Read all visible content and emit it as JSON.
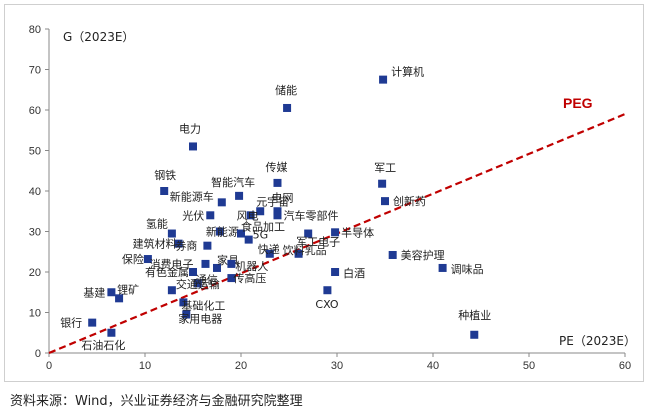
{
  "chart_data": {
    "type": "scatter",
    "xlabel": "PE（2023E）",
    "ylabel": "G（2023E）",
    "xlim": [
      0,
      60
    ],
    "ylim": [
      0,
      80
    ],
    "xticks": [
      0,
      10,
      20,
      30,
      40,
      50,
      60
    ],
    "yticks": [
      0,
      10,
      20,
      30,
      40,
      50,
      60,
      70,
      80
    ],
    "grid": false,
    "marker_color": "#1f3a93",
    "trend_line": {
      "name": "PEG",
      "from": [
        0,
        0
      ],
      "to": [
        60,
        59
      ],
      "color": "#c00000",
      "style": "dashed"
    },
    "points": [
      {
        "label": "计算机",
        "x": 34.8,
        "y": 67.5
      },
      {
        "label": "储能",
        "x": 24.8,
        "y": 60.5
      },
      {
        "label": "电力",
        "x": 15.0,
        "y": 51.0
      },
      {
        "label": "传媒",
        "x": 23.8,
        "y": 42.0
      },
      {
        "label": "军工",
        "x": 34.7,
        "y": 41.8
      },
      {
        "label": "钢铁",
        "x": 12.0,
        "y": 40.0
      },
      {
        "label": "智能汽车",
        "x": 19.8,
        "y": 38.8
      },
      {
        "label": "创新药",
        "x": 35.0,
        "y": 37.5
      },
      {
        "label": "新能源车",
        "x": 18.0,
        "y": 37.2
      },
      {
        "label": "元宇宙",
        "x": 22.0,
        "y": 35.0
      },
      {
        "label": "电网",
        "x": 23.8,
        "y": 35.0
      },
      {
        "label": "光伏",
        "x": 16.8,
        "y": 34.0
      },
      {
        "label": "风电",
        "x": 21.0,
        "y": 34.0
      },
      {
        "label": "汽车零部件",
        "x": 23.8,
        "y": 34.0
      },
      {
        "label": "氢能",
        "x": 12.8,
        "y": 29.5
      },
      {
        "label": "新能源",
        "x": 17.8,
        "y": 30.0
      },
      {
        "label": "食品加工",
        "x": 20.0,
        "y": 29.5
      },
      {
        "label": "半导体",
        "x": 29.8,
        "y": 29.8
      },
      {
        "label": "军工电子",
        "x": 27.0,
        "y": 29.5
      },
      {
        "label": "建筑材料",
        "x": 13.5,
        "y": 27.0
      },
      {
        "label": "券商",
        "x": 16.5,
        "y": 26.5
      },
      {
        "label": "5G",
        "x": 20.8,
        "y": 28.0
      },
      {
        "label": "快递",
        "x": 23.0,
        "y": 24.5
      },
      {
        "label": "保险",
        "x": 10.3,
        "y": 23.2
      },
      {
        "label": "饮料乳品",
        "x": 26.0,
        "y": 24.5
      },
      {
        "label": "美容护理",
        "x": 35.8,
        "y": 24.2
      },
      {
        "label": "消费电子",
        "x": 16.3,
        "y": 22.0
      },
      {
        "label": "家具",
        "x": 17.5,
        "y": 21.0
      },
      {
        "label": "机器人",
        "x": 19.0,
        "y": 22.0
      },
      {
        "label": "调味品",
        "x": 41.0,
        "y": 21.0
      },
      {
        "label": "有色金属",
        "x": 15.0,
        "y": 20.0
      },
      {
        "label": "白酒",
        "x": 29.8,
        "y": 20.0
      },
      {
        "label": "传高压",
        "x": 19.0,
        "y": 18.5
      },
      {
        "label": "通信",
        "x": 15.5,
        "y": 17.2
      },
      {
        "label": "CXO",
        "x": 29.0,
        "y": 15.5
      },
      {
        "label": "交通运输",
        "x": 12.8,
        "y": 15.5
      },
      {
        "label": "基建",
        "x": 6.5,
        "y": 15.0
      },
      {
        "label": "基础化工",
        "x": 14.0,
        "y": 12.5
      },
      {
        "label": "锂矿",
        "x": 7.3,
        "y": 13.5
      },
      {
        "label": "家用电器",
        "x": 14.3,
        "y": 9.5
      },
      {
        "label": "银行",
        "x": 4.5,
        "y": 7.5
      },
      {
        "label": "种植业",
        "x": 44.3,
        "y": 4.5
      },
      {
        "label": "石油石化",
        "x": 6.5,
        "y": 5.0
      }
    ]
  },
  "source_note": "资料来源：Wind，兴业证券经济与金融研究院整理"
}
